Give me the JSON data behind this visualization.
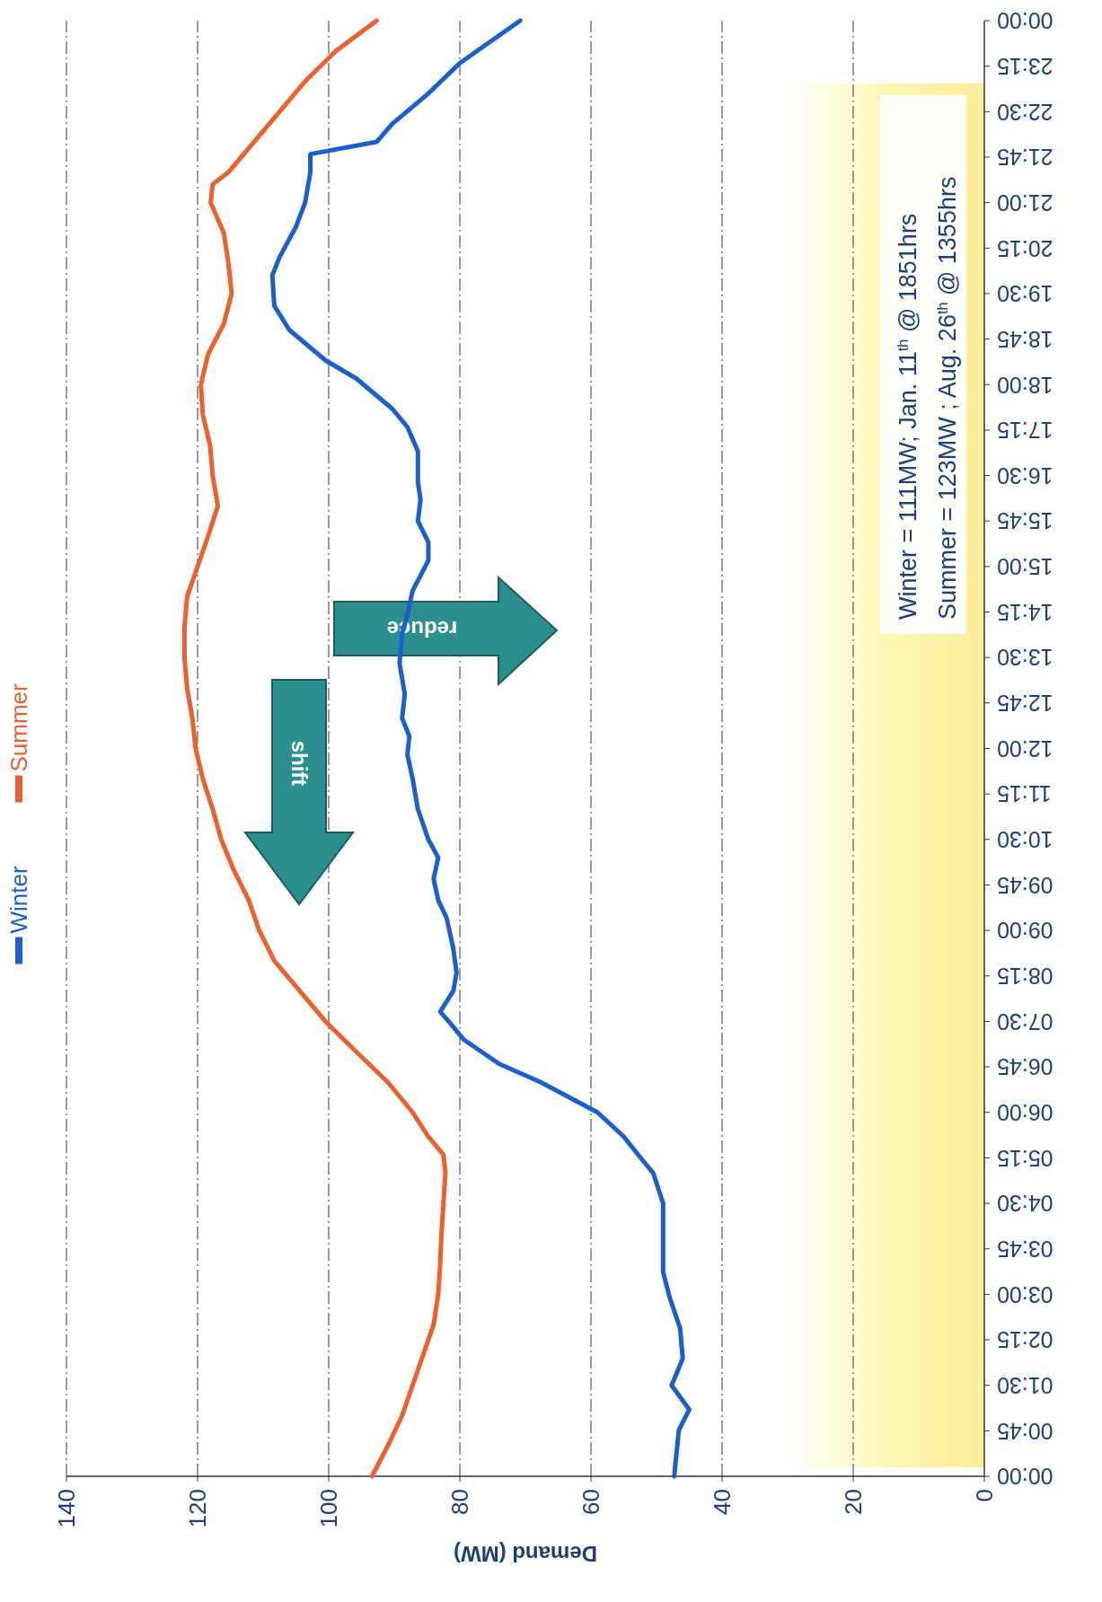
{
  "chart_data": {
    "type": "line",
    "xlabel": "Demand (MW)",
    "xlim": [
      140,
      0
    ],
    "xticks": [
      0,
      20,
      40,
      60,
      80,
      100,
      120,
      140
    ],
    "ylim": [
      0,
      24
    ],
    "yticks": [
      {
        "value": 0,
        "label": "00:00"
      },
      {
        "value": 0.75,
        "label": "00:45"
      },
      {
        "value": 1.5,
        "label": "01:30"
      },
      {
        "value": 2.25,
        "label": "02:15"
      },
      {
        "value": 3,
        "label": "03:00"
      },
      {
        "value": 3.75,
        "label": "03:45"
      },
      {
        "value": 4.5,
        "label": "04:30"
      },
      {
        "value": 5.25,
        "label": "05:15"
      },
      {
        "value": 6,
        "label": "06:00"
      },
      {
        "value": 6.75,
        "label": "06:45"
      },
      {
        "value": 7.5,
        "label": "07:30"
      },
      {
        "value": 8.25,
        "label": "08:15"
      },
      {
        "value": 9,
        "label": "09:00"
      },
      {
        "value": 9.75,
        "label": "09:45"
      },
      {
        "value": 10.5,
        "label": "10:30"
      },
      {
        "value": 11.25,
        "label": "11:15"
      },
      {
        "value": 12,
        "label": "12:00"
      },
      {
        "value": 12.75,
        "label": "12:45"
      },
      {
        "value": 13.5,
        "label": "13:30"
      },
      {
        "value": 14.25,
        "label": "14:15"
      },
      {
        "value": 15,
        "label": "15:00"
      },
      {
        "value": 15.75,
        "label": "15:45"
      },
      {
        "value": 16.5,
        "label": "16:30"
      },
      {
        "value": 17.25,
        "label": "17:15"
      },
      {
        "value": 18,
        "label": "18:00"
      },
      {
        "value": 18.75,
        "label": "18:45"
      },
      {
        "value": 19.5,
        "label": "19:30"
      },
      {
        "value": 20.25,
        "label": "20:15"
      },
      {
        "value": 21,
        "label": "21:00"
      },
      {
        "value": 21.75,
        "label": "21:45"
      },
      {
        "value": 22.5,
        "label": "22:30"
      },
      {
        "value": 23.25,
        "label": "23:15"
      },
      {
        "value": 24,
        "label": "00:00"
      }
    ],
    "grid": "x",
    "legend": "left",
    "marker": "none",
    "line_style": "solid",
    "annotations": [
      "Winter = 111MW; Jan. 11$^{th}$ @ 1851hrs",
      "Summer = 123MW ; Aug. 26$^{th}$ @ 1355hrs",
      "shift",
      "reduce"
    ],
    "series": [
      {
        "name": "Winter",
        "color": "#1a5fcc",
        "values": [
          0,
          0.76,
          1.1,
          1.5,
          1.94,
          2.44,
          2.95,
          3.37,
          3.8,
          4.1,
          4.5,
          5.0,
          5.3,
          5.6,
          6.0,
          6.5,
          6.8,
          7.2,
          7.5,
          7.66,
          8.0,
          8.3,
          8.7,
          9.2,
          9.5,
          9.85,
          10.2,
          10.5,
          11.0,
          11.5,
          11.9,
          12.2,
          12.5,
          12.9,
          13.4,
          13.9,
          14.2,
          14.6,
          15.1,
          15.4,
          15.75,
          16.1,
          16.4,
          16.9,
          17.3,
          17.6,
          18.1,
          18.4,
          18.9,
          19.3,
          19.8,
          20.1,
          20.6,
          21.0,
          21.5,
          21.8,
          22.0,
          22.3,
          22.8,
          23.3,
          24.0
        ],
        "x": [
          47.3,
          46.6,
          45,
          47.7,
          46,
          46.4,
          48,
          49,
          49,
          49,
          49,
          50.5,
          52.8,
          55,
          59,
          67.7,
          74,
          79.4,
          81.7,
          83,
          81,
          80.5,
          81,
          82,
          83.3,
          84,
          83.3,
          84.8,
          86.4,
          87.2,
          88,
          87.7,
          88.8,
          88.4,
          89.2,
          88.8,
          88,
          87.2,
          84.8,
          84.8,
          86.4,
          86,
          86.4,
          86.4,
          88,
          90.3,
          95.8,
          100.5,
          106,
          108.3,
          108.6,
          107.5,
          105,
          103.6,
          102.8,
          102.8,
          92.7,
          90.3,
          84.8,
          80,
          70.8
        ]
      },
      {
        "name": "Summer",
        "color": "#ec5f2e",
        "values": [
          0,
          0.5,
          1,
          1.5,
          2,
          2.5,
          3,
          3.5,
          4,
          4.5,
          5,
          5.3,
          5.6,
          6,
          6.5,
          7,
          7.5,
          8,
          8.5,
          9,
          9.5,
          10,
          10.5,
          11,
          11.5,
          12,
          12.5,
          13,
          13.5,
          14,
          14.5,
          15,
          15.5,
          16,
          16.5,
          17,
          17.5,
          18,
          18.5,
          19,
          19.5,
          20,
          20.5,
          21,
          21.3,
          21.5,
          22,
          22.5,
          23,
          23.5,
          24
        ],
        "x": [
          93.4,
          91,
          88.8,
          87.2,
          85.6,
          84,
          83.3,
          83,
          82.8,
          82.5,
          82.2,
          82.5,
          84.8,
          87.2,
          91,
          95.8,
          100.5,
          104.4,
          108.3,
          110.6,
          112.2,
          114.5,
          116.4,
          117.7,
          119.2,
          120.3,
          120.8,
          121.6,
          122,
          122,
          121.6,
          120,
          118.4,
          116.9,
          117.7,
          118.1,
          119.2,
          119.5,
          118.4,
          116,
          114.8,
          115.3,
          116,
          118,
          117.7,
          115.3,
          111.4,
          107.5,
          103.6,
          98.9,
          92.7
        ]
      }
    ]
  }
}
